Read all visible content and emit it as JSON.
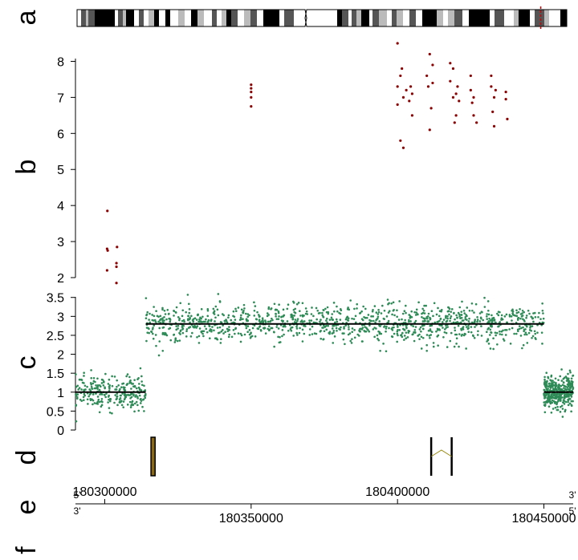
{
  "panels": {
    "a": {
      "letter": "a"
    },
    "b": {
      "letter": "b"
    },
    "c": {
      "letter": "c"
    },
    "d": {
      "letter": "d"
    },
    "e": {
      "letter": "e"
    },
    "f": {
      "letter": "f"
    }
  },
  "colors": {
    "ideogram_dark": "#000000",
    "ideogram_mid": "#555555",
    "ideogram_light": "#bbbbbb",
    "ideogram_marker": "#cc0000",
    "scatter_red": "#8b0000",
    "scatter_green": "#2e8b57",
    "segment_line": "#000000",
    "gene_fill": "#8b6914",
    "intron_line": "#9a8a10"
  },
  "chart_data": [
    {
      "type": "scatter",
      "panel": "b",
      "series": [
        {
          "values": [
            [
              180300800,
              2.2
            ],
            [
              180300800,
              2.8
            ],
            [
              180300900,
              3.85
            ],
            [
              180301000,
              2.75
            ],
            [
              180304000,
              1.85
            ],
            [
              180304000,
              2.3
            ],
            [
              180304000,
              2.4
            ],
            [
              180304200,
              2.85
            ],
            [
              180350000,
              6.75
            ],
            [
              180350000,
              7.0
            ],
            [
              180350000,
              7.15
            ],
            [
              180350000,
              7.25
            ],
            [
              180350000,
              7.35
            ],
            [
              180400000,
              8.5
            ],
            [
              180400000,
              7.3
            ],
            [
              180400000,
              6.8
            ],
            [
              180401000,
              7.6
            ],
            [
              180401000,
              5.8
            ],
            [
              180401500,
              7.8
            ],
            [
              180402000,
              5.6
            ],
            [
              180402000,
              7.0
            ],
            [
              180403000,
              7.2
            ],
            [
              180404000,
              6.9
            ],
            [
              180404500,
              7.3
            ],
            [
              180405000,
              6.5
            ],
            [
              180405000,
              7.1
            ],
            [
              180410000,
              7.6
            ],
            [
              180410500,
              7.3
            ],
            [
              180411000,
              8.2
            ],
            [
              180411000,
              6.1
            ],
            [
              180411500,
              6.7
            ],
            [
              180412000,
              7.9
            ],
            [
              180412000,
              7.4
            ],
            [
              180418000,
              7.95
            ],
            [
              180418000,
              7.45
            ],
            [
              180419000,
              7.8
            ],
            [
              180419000,
              7.0
            ],
            [
              180419500,
              6.3
            ],
            [
              180420000,
              7.1
            ],
            [
              180420000,
              6.5
            ],
            [
              180420500,
              7.3
            ],
            [
              180421000,
              6.9
            ],
            [
              180425000,
              7.6
            ],
            [
              180425000,
              7.2
            ],
            [
              180425500,
              6.85
            ],
            [
              180426000,
              6.5
            ],
            [
              180426000,
              7.0
            ],
            [
              180427000,
              6.3
            ],
            [
              180432000,
              7.6
            ],
            [
              180432000,
              7.3
            ],
            [
              180432500,
              6.6
            ],
            [
              180433000,
              7.0
            ],
            [
              180433000,
              6.2
            ],
            [
              180433500,
              7.2
            ],
            [
              180437000,
              7.15
            ],
            [
              180437000,
              6.95
            ],
            [
              180437500,
              6.4
            ]
          ]
        }
      ],
      "xlim": [
        180290000,
        180460000
      ],
      "ylim": [
        2,
        8.5
      ],
      "yticks": [
        2,
        3,
        4,
        5,
        6,
        7,
        8
      ],
      "ytick_labels": [
        "2",
        "3",
        "4",
        "5",
        "6",
        "7",
        "8"
      ]
    },
    {
      "type": "scatter",
      "panel": "c",
      "series": [
        {
          "values": []
        }
      ],
      "segments": [
        {
          "start": 180290000,
          "end": 180314000,
          "value": 1.0
        },
        {
          "start": 180314000,
          "end": 180450000,
          "value": 2.8
        },
        {
          "start": 180450000,
          "end": 180460000,
          "value": 1.0
        }
      ],
      "xlim": [
        180290000,
        180460000
      ],
      "ylim": [
        0,
        3.6
      ],
      "yticks": [
        0,
        0.5,
        1,
        1.5,
        2,
        2.5,
        3,
        3.5
      ],
      "ytick_labels": [
        "0",
        "0.5",
        "1",
        "1.5",
        "2",
        "2.5",
        "3",
        "3.5"
      ]
    }
  ],
  "genes": [
    {
      "type": "exon",
      "start": 180315800,
      "end": 180317200
    },
    {
      "type": "transcript",
      "exon1": 180411500,
      "exon2": 180418500
    }
  ],
  "axis": {
    "ticks_top": [
      "180300000",
      "180400000"
    ],
    "ticks_top_values": [
      180300000,
      180400000
    ],
    "ticks_bottom": [
      "180350000",
      "180450000"
    ],
    "ticks_bottom_values": [
      180350000,
      180450000
    ],
    "strand_left_top": "5'",
    "strand_left_bottom": "3'",
    "strand_right_top": "3'",
    "strand_right_bottom": "5'"
  },
  "ideogram": {
    "bands_left": [
      [
        "w",
        0,
        5
      ],
      [
        "m",
        5,
        6
      ],
      [
        "l",
        11,
        3
      ],
      [
        "m",
        14,
        8
      ],
      [
        "d",
        22,
        25
      ],
      [
        "w",
        47,
        4
      ],
      [
        "m",
        51,
        6
      ],
      [
        "l",
        57,
        4
      ],
      [
        "d",
        61,
        10
      ],
      [
        "w",
        71,
        6
      ],
      [
        "m",
        77,
        6
      ],
      [
        "w",
        83,
        6
      ],
      [
        "l",
        89,
        7
      ],
      [
        "d",
        96,
        6
      ],
      [
        "w",
        102,
        8
      ],
      [
        "d",
        110,
        6
      ],
      [
        "w",
        116,
        10
      ],
      [
        "l",
        126,
        8
      ],
      [
        "w",
        134,
        8
      ],
      [
        "d",
        142,
        8
      ],
      [
        "l",
        150,
        8
      ],
      [
        "w",
        158,
        10
      ],
      [
        "m",
        168,
        6
      ],
      [
        "w",
        174,
        6
      ],
      [
        "l",
        180,
        6
      ],
      [
        "d",
        186,
        6
      ],
      [
        "m",
        192,
        8
      ],
      [
        "w",
        200,
        8
      ],
      [
        "l",
        208,
        8
      ],
      [
        "m",
        216,
        8
      ],
      [
        "w",
        224,
        8
      ],
      [
        "d",
        232,
        20
      ],
      [
        "w",
        252,
        6
      ],
      [
        "m",
        258,
        12
      ],
      [
        "w",
        270,
        14
      ]
    ],
    "bands_right": [
      [
        "w",
        0,
        38
      ],
      [
        "d",
        38,
        6
      ],
      [
        "m",
        44,
        8
      ],
      [
        "w",
        52,
        4
      ],
      [
        "m",
        56,
        6
      ],
      [
        "l",
        62,
        6
      ],
      [
        "d",
        68,
        10
      ],
      [
        "w",
        78,
        4
      ],
      [
        "m",
        82,
        8
      ],
      [
        "l",
        90,
        10
      ],
      [
        "w",
        100,
        6
      ],
      [
        "m",
        106,
        6
      ],
      [
        "l",
        112,
        8
      ],
      [
        "w",
        120,
        8
      ],
      [
        "m",
        128,
        8
      ],
      [
        "w",
        136,
        8
      ],
      [
        "d",
        144,
        18
      ],
      [
        "l",
        162,
        8
      ],
      [
        "w",
        170,
        6
      ],
      [
        "l",
        176,
        8
      ],
      [
        "m",
        184,
        10
      ],
      [
        "w",
        194,
        8
      ],
      [
        "d",
        202,
        26
      ],
      [
        "w",
        228,
        6
      ],
      [
        "m",
        234,
        12
      ],
      [
        "w",
        246,
        12
      ],
      [
        "l",
        258,
        6
      ],
      [
        "d",
        264,
        14
      ],
      [
        "w",
        278,
        6
      ],
      [
        "m",
        284,
        12
      ],
      [
        "l",
        296,
        6
      ],
      [
        "w",
        302,
        14
      ],
      [
        "d",
        316,
        8
      ]
    ],
    "marker_pos": 0.9
  }
}
